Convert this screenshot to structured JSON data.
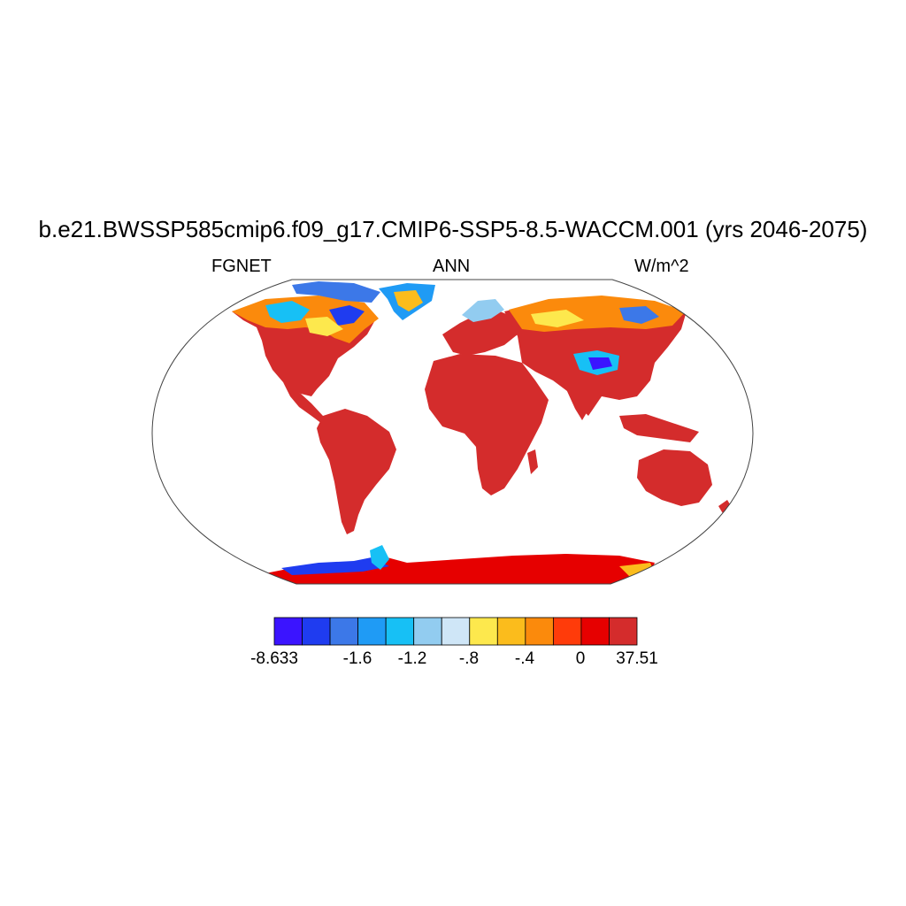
{
  "header": {
    "title": "b.e21.BWSSP585cmip6.f09_g17.CMIP6-SSP5-8.5-WACCM.001 (yrs 2046-2075)",
    "variable": "FGNET",
    "season": "ANN",
    "units": "W/m^2"
  },
  "map": {
    "projection": "Robinson",
    "field": "FGNET annual mean",
    "land_colors": {
      "dominant_positive": "#d42c2c",
      "antarctic": "#e60000",
      "high_latitude_mix": [
        "#3b2bff",
        "#1f3bf0",
        "#3c78e8",
        "#1f9bf5",
        "#17c0f5",
        "#92ccf0",
        "#cfe6f7",
        "#fde84d",
        "#fbbc1c",
        "#fb8a0c",
        "#ff3b0a"
      ]
    },
    "ocean_color": "#ffffff"
  },
  "colorbar": {
    "colors": [
      "#3b14ff",
      "#1f3cf0",
      "#3c78e8",
      "#1f9bf5",
      "#17c0f5",
      "#92ccf0",
      "#cfe6f7",
      "#fde84d",
      "#fbbc1c",
      "#fb8a0c",
      "#ff3b0a",
      "#e60000",
      "#d42c2c"
    ],
    "tick_labels": [
      "-8.633",
      "-1.6",
      "-1.2",
      "-.8",
      "-.4",
      "0",
      "37.51"
    ]
  }
}
